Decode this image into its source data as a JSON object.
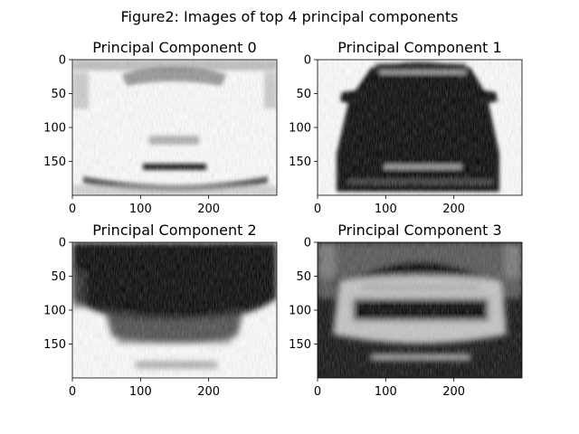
{
  "figure": {
    "title": "Figure2: Images of top 4 principal components"
  },
  "chart_data": [
    {
      "type": "heatmap",
      "title": "Principal Component 0",
      "xlim": [
        0,
        300
      ],
      "ylim": [
        200,
        0
      ],
      "xticks": [
        0,
        100,
        200
      ],
      "yticks": [
        0,
        50,
        100,
        150
      ],
      "colormap": "gray",
      "grid": false
    },
    {
      "type": "heatmap",
      "title": "Principal Component 1",
      "xlim": [
        0,
        300
      ],
      "ylim": [
        200,
        0
      ],
      "xticks": [
        0,
        100,
        200
      ],
      "yticks": [
        0,
        50,
        100,
        150
      ],
      "colormap": "gray",
      "grid": false
    },
    {
      "type": "heatmap",
      "title": "Principal Component 2",
      "xlim": [
        0,
        300
      ],
      "ylim": [
        200,
        0
      ],
      "xticks": [
        0,
        100,
        200
      ],
      "yticks": [
        0,
        50,
        100,
        150
      ],
      "colormap": "gray",
      "grid": false
    },
    {
      "type": "heatmap",
      "title": "Principal Component 3",
      "xlim": [
        0,
        300
      ],
      "ylim": [
        200,
        0
      ],
      "xticks": [
        0,
        100,
        200
      ],
      "yticks": [
        0,
        50,
        100,
        150
      ],
      "colormap": "gray",
      "grid": false
    }
  ]
}
